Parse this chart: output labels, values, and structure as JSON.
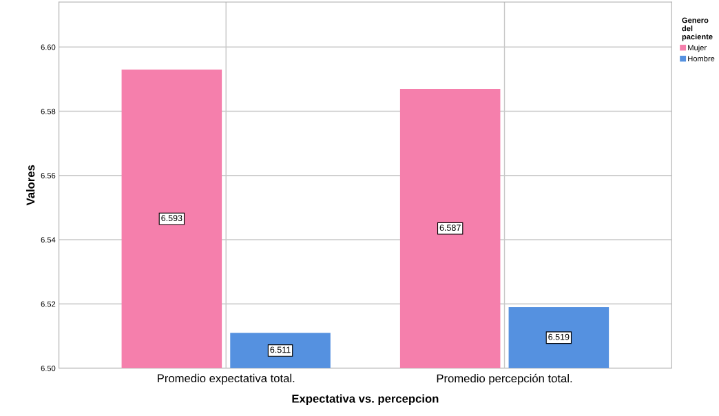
{
  "chart_data": {
    "type": "bar",
    "xlabel": "Expectativa vs. percepcion",
    "ylabel": "Valores",
    "legend_title": "Genero del paciente",
    "categories": [
      "Promedio expectativa total.",
      "Promedio percepción total."
    ],
    "series": [
      {
        "name": "Mujer",
        "color": "#f57fac",
        "values": [
          6.593,
          6.587
        ]
      },
      {
        "name": "Hombre",
        "color": "#5591e0",
        "values": [
          6.511,
          6.519
        ]
      }
    ],
    "ylim": [
      6.5,
      6.614
    ],
    "yticks": [
      {
        "value": 6.5,
        "label": "6.50"
      },
      {
        "value": 6.52,
        "label": "6.52"
      },
      {
        "value": 6.54,
        "label": "6.54"
      },
      {
        "value": 6.56,
        "label": "6.56"
      },
      {
        "value": 6.58,
        "label": "6.58"
      },
      {
        "value": 6.6,
        "label": "6.60"
      }
    ],
    "grid": true,
    "legend": "top right",
    "data_labels": true
  }
}
